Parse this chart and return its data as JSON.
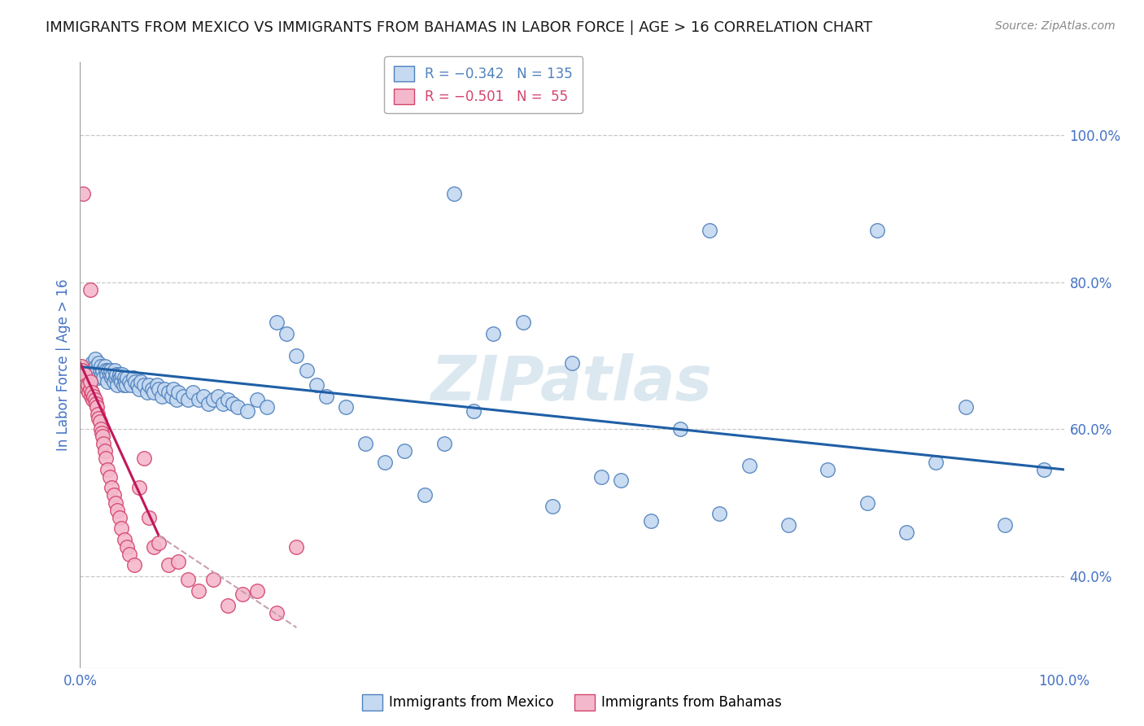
{
  "title": "IMMIGRANTS FROM MEXICO VS IMMIGRANTS FROM BAHAMAS IN LABOR FORCE | AGE > 16 CORRELATION CHART",
  "source": "Source: ZipAtlas.com",
  "ylabel": "In Labor Force | Age > 16",
  "y_tick_labels": [
    "40.0%",
    "60.0%",
    "80.0%",
    "100.0%"
  ],
  "y_tick_values": [
    0.4,
    0.6,
    0.8,
    1.0
  ],
  "xlim": [
    0.0,
    1.0
  ],
  "ylim": [
    0.275,
    1.1
  ],
  "background_color": "#ffffff",
  "grid_color": "#c8c8c8",
  "watermark_text": "ZIPatlas",
  "watermark_color": "#dce8f0",
  "mexico_fill_color": "#c5d9f1",
  "mexico_edge_color": "#4f81bd",
  "bahamas_fill_color": "#f4b8cc",
  "bahamas_edge_color": "#d4446c",
  "mexico_line_color": "#1f5fa6",
  "bahamas_line_color": "#c0185a",
  "bahamas_dashed_color": "#c8a0b0",
  "title_fontsize": 13,
  "axis_label_color": "#4472c4",
  "tick_label_color": "#4472c4",
  "mexico_scatter": {
    "x": [
      0.01,
      0.012,
      0.013,
      0.015,
      0.015,
      0.016,
      0.017,
      0.018,
      0.019,
      0.02,
      0.021,
      0.022,
      0.023,
      0.024,
      0.025,
      0.026,
      0.027,
      0.028,
      0.029,
      0.03,
      0.031,
      0.032,
      0.033,
      0.034,
      0.035,
      0.036,
      0.037,
      0.038,
      0.039,
      0.04,
      0.041,
      0.042,
      0.043,
      0.044,
      0.045,
      0.046,
      0.047,
      0.048,
      0.05,
      0.052,
      0.054,
      0.056,
      0.058,
      0.06,
      0.062,
      0.065,
      0.068,
      0.07,
      0.073,
      0.075,
      0.078,
      0.08,
      0.083,
      0.086,
      0.09,
      0.093,
      0.095,
      0.098,
      0.1,
      0.105,
      0.11,
      0.115,
      0.12,
      0.125,
      0.13,
      0.135,
      0.14,
      0.145,
      0.15,
      0.155,
      0.16,
      0.17,
      0.18,
      0.19,
      0.2,
      0.21,
      0.22,
      0.23,
      0.24,
      0.25,
      0.27,
      0.29,
      0.31,
      0.33,
      0.35,
      0.37,
      0.4,
      0.42,
      0.45,
      0.48,
      0.5,
      0.53,
      0.55,
      0.58,
      0.61,
      0.65,
      0.68,
      0.72,
      0.76,
      0.8,
      0.84,
      0.87,
      0.9,
      0.94,
      0.98
    ],
    "y": [
      0.685,
      0.69,
      0.68,
      0.695,
      0.675,
      0.685,
      0.68,
      0.67,
      0.69,
      0.68,
      0.685,
      0.675,
      0.68,
      0.67,
      0.685,
      0.68,
      0.675,
      0.665,
      0.68,
      0.675,
      0.68,
      0.67,
      0.675,
      0.665,
      0.68,
      0.67,
      0.675,
      0.66,
      0.67,
      0.675,
      0.67,
      0.665,
      0.675,
      0.66,
      0.67,
      0.665,
      0.66,
      0.67,
      0.665,
      0.66,
      0.67,
      0.665,
      0.66,
      0.655,
      0.665,
      0.66,
      0.65,
      0.66,
      0.655,
      0.65,
      0.66,
      0.655,
      0.645,
      0.655,
      0.65,
      0.645,
      0.655,
      0.64,
      0.65,
      0.645,
      0.64,
      0.65,
      0.64,
      0.645,
      0.635,
      0.64,
      0.645,
      0.635,
      0.64,
      0.635,
      0.63,
      0.625,
      0.64,
      0.63,
      0.745,
      0.73,
      0.7,
      0.68,
      0.66,
      0.645,
      0.63,
      0.58,
      0.555,
      0.57,
      0.51,
      0.58,
      0.625,
      0.73,
      0.745,
      0.495,
      0.69,
      0.535,
      0.53,
      0.475,
      0.6,
      0.485,
      0.55,
      0.47,
      0.545,
      0.5,
      0.46,
      0.555,
      0.63,
      0.47,
      0.545
    ]
  },
  "bahamas_scatter": {
    "x": [
      0.001,
      0.002,
      0.003,
      0.004,
      0.005,
      0.005,
      0.006,
      0.007,
      0.008,
      0.009,
      0.01,
      0.01,
      0.011,
      0.012,
      0.013,
      0.014,
      0.015,
      0.016,
      0.017,
      0.018,
      0.019,
      0.02,
      0.021,
      0.022,
      0.023,
      0.024,
      0.025,
      0.026,
      0.028,
      0.03,
      0.032,
      0.034,
      0.036,
      0.038,
      0.04,
      0.042,
      0.045,
      0.048,
      0.05,
      0.055,
      0.06,
      0.065,
      0.07,
      0.075,
      0.08,
      0.09,
      0.1,
      0.11,
      0.12,
      0.135,
      0.15,
      0.165,
      0.18,
      0.2,
      0.22
    ],
    "y": [
      0.685,
      0.68,
      0.67,
      0.665,
      0.66,
      0.675,
      0.66,
      0.655,
      0.66,
      0.65,
      0.655,
      0.665,
      0.645,
      0.65,
      0.64,
      0.645,
      0.64,
      0.635,
      0.63,
      0.62,
      0.615,
      0.61,
      0.6,
      0.595,
      0.59,
      0.58,
      0.57,
      0.56,
      0.545,
      0.535,
      0.52,
      0.51,
      0.5,
      0.49,
      0.48,
      0.465,
      0.45,
      0.44,
      0.43,
      0.415,
      0.52,
      0.56,
      0.48,
      0.44,
      0.445,
      0.415,
      0.42,
      0.395,
      0.38,
      0.395,
      0.36,
      0.375,
      0.38,
      0.35,
      0.44
    ]
  },
  "bahamas_top_points": {
    "x": [
      0.003,
      0.01
    ],
    "y": [
      0.92,
      0.79
    ]
  },
  "mexico_top_points": {
    "x": [
      0.38,
      0.64,
      0.81
    ],
    "y": [
      0.92,
      0.87,
      0.87
    ]
  },
  "mexico_trendline": {
    "x_start": 0.0,
    "x_end": 1.0,
    "y_start": 0.685,
    "y_end": 0.545
  },
  "bahamas_trendline_solid": {
    "x_start": 0.0,
    "x_end": 0.08,
    "y_start": 0.69,
    "y_end": 0.455
  },
  "bahamas_trendline_dashed": {
    "x_start": 0.08,
    "x_end": 0.22,
    "y_start": 0.455,
    "y_end": 0.33
  }
}
